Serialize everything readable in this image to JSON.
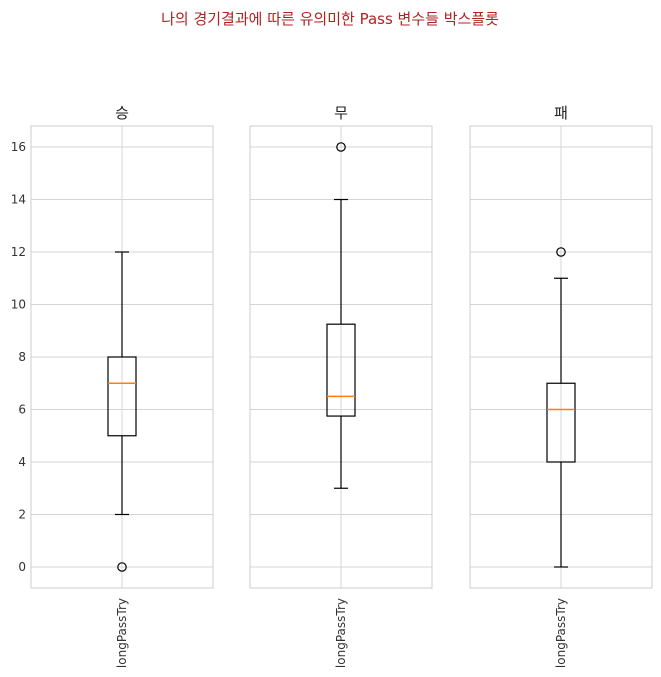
{
  "chart_data": {
    "type": "box",
    "title": "나의 경기결과에 따른 유의미한 Pass 변수들 박스플롯",
    "ylim": [
      -0.8,
      16.8
    ],
    "yticks": [
      0,
      2,
      4,
      6,
      8,
      10,
      12,
      14,
      16
    ],
    "grid": true,
    "shared_y": true,
    "panels": [
      {
        "title": "승",
        "category": "longPassTry",
        "whisker_low": 2,
        "q1": 5,
        "median": 7,
        "q3": 8,
        "whisker_high": 12,
        "fliers": [
          0
        ]
      },
      {
        "title": "무",
        "category": "longPassTry",
        "whisker_low": 3,
        "q1": 5.75,
        "median": 6.5,
        "q3": 9.25,
        "whisker_high": 14,
        "fliers": [
          16
        ]
      },
      {
        "title": "패",
        "category": "longPassTry",
        "whisker_low": 0,
        "q1": 4,
        "median": 6,
        "q3": 7,
        "whisker_high": 11,
        "fliers": [
          12
        ]
      }
    ]
  }
}
